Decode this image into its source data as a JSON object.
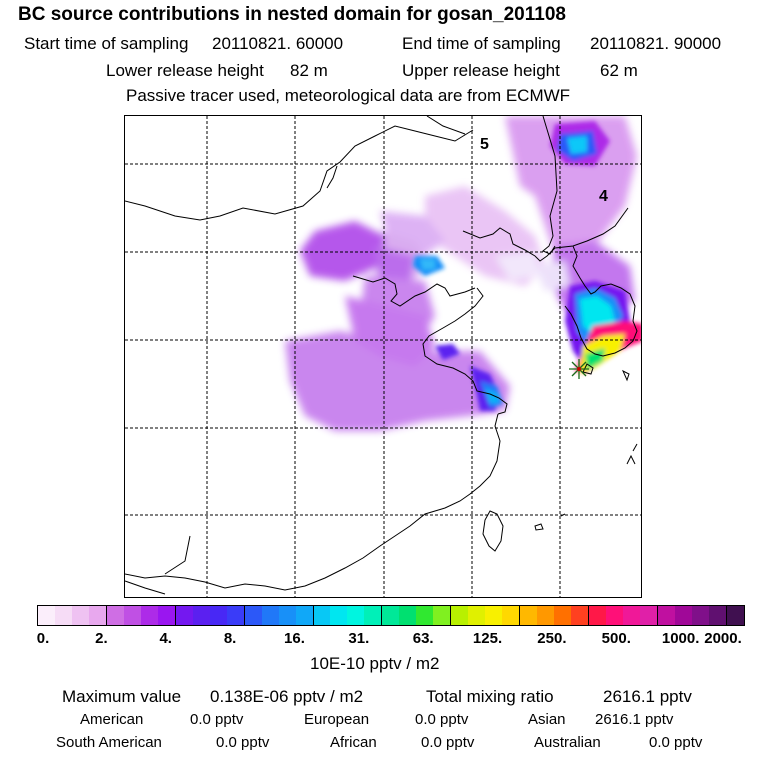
{
  "header": {
    "title": "BC  source contributions in nested domain for gosan_201108",
    "start_label": "Start time of sampling",
    "start_value": "20110821. 60000",
    "end_label": "End time of sampling",
    "end_value": "20110821. 90000",
    "lower_label": "Lower release height",
    "lower_value": "82 m",
    "upper_label": "Upper release height",
    "upper_value": "62 m",
    "note": "Passive tracer used, meteorological data are from ECMWF"
  },
  "map": {
    "labels": [
      "5",
      "4"
    ],
    "release_marker": "star-marker"
  },
  "colorbar": {
    "ticks": [
      "0.",
      "2.",
      "4.",
      "8.",
      "16.",
      "31.",
      "63.",
      "125.",
      "250.",
      "500.",
      "1000.",
      "2000."
    ],
    "colors": [
      "#fbeefb",
      "#f6dcf6",
      "#efc2f2",
      "#e8a8ee",
      "#cf6ee4",
      "#c050e4",
      "#ad2be8",
      "#9a16f0",
      "#7418f0",
      "#5b20f0",
      "#4828f5",
      "#3a3cf8",
      "#2c58f8",
      "#2078f8",
      "#1890f8",
      "#10a8f8",
      "#08c8f5",
      "#00e6f0",
      "#00f5e0",
      "#00f0b8",
      "#00e898",
      "#00e070",
      "#30e830",
      "#80f020",
      "#b8f000",
      "#e0f000",
      "#f8f000",
      "#ffd800",
      "#ffb800",
      "#ff9800",
      "#ff7000",
      "#ff4020",
      "#ff1848",
      "#ff1078",
      "#f01898",
      "#e020a8",
      "#c010a0",
      "#a00898",
      "#80108a",
      "#601070",
      "#401050"
    ],
    "units": "10E-10 pptv / m2"
  },
  "stats": {
    "max_label": "Maximum value",
    "max_value": "0.138E-06 pptv / m2",
    "total_label": "Total mixing ratio",
    "total_value": "2616.1 pptv",
    "american_label": "American",
    "american_value": "0.0 pptv",
    "european_label": "European",
    "european_value": "0.0 pptv",
    "asian_label": "Asian",
    "asian_value": "2616.1 pptv",
    "south_american_label": "South American",
    "south_american_value": "0.0 pptv",
    "african_label": "African",
    "african_value": "0.0 pptv",
    "australian_label": "Australian",
    "australian_value": "0.0 pptv"
  }
}
